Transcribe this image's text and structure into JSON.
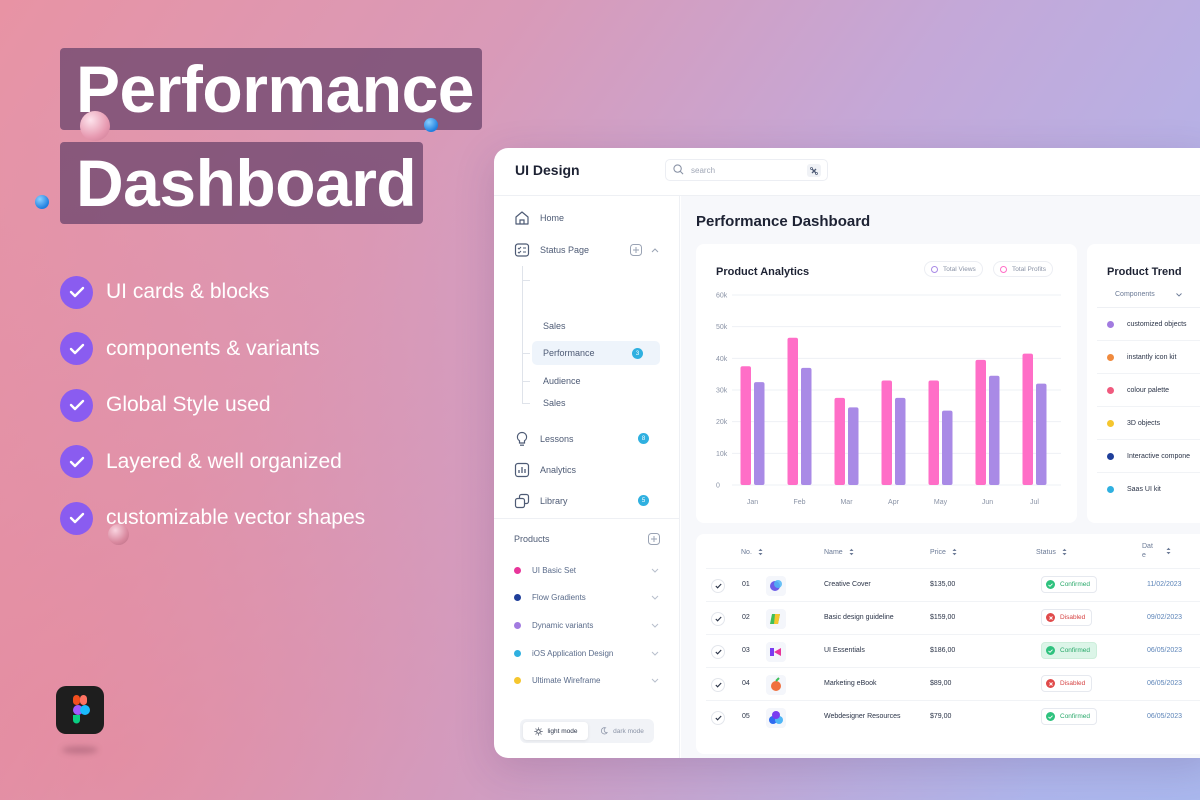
{
  "hero": {
    "title_line1": "Performance",
    "title_line2": "Dashboard",
    "features": [
      "UI cards & blocks",
      "components & variants",
      "Global Style used",
      "Layered & well organized",
      "customizable vector shapes"
    ]
  },
  "app": {
    "title": "UI Design",
    "search_placeholder": "search"
  },
  "sidebar": {
    "home": "Home",
    "status_page": "Status Page",
    "sub_items": [
      "Sales",
      "Performance",
      "Audience",
      "Sales"
    ],
    "performance_badge": "3",
    "lessons": "Lessons",
    "lessons_badge": "8",
    "analytics": "Analytics",
    "library": "Library",
    "library_badge": "5",
    "products_title": "Products",
    "products": [
      {
        "label": "UI Basic Set",
        "color": "#e8359a"
      },
      {
        "label": "Flow Gradients",
        "color": "#1f3f9a"
      },
      {
        "label": "Dynamic variants",
        "color": "#a27be0"
      },
      {
        "label": "iOS Application Design",
        "color": "#2fb0e0"
      },
      {
        "label": "Ultimate Wireframe",
        "color": "#f5c62e"
      }
    ],
    "light_mode": "light mode",
    "dark_mode": "dark mode"
  },
  "main": {
    "page_title": "Performance Dashboard"
  },
  "analytics": {
    "title": "Product Analytics",
    "legend_views": "Total Views",
    "legend_profits": "Total Profits",
    "colors": {
      "profits": "#ff6ec7",
      "views": "#a98ae6"
    }
  },
  "chart_data": {
    "type": "bar",
    "title": "Product Analytics",
    "categories": [
      "Jan",
      "Feb",
      "Mar",
      "Apr",
      "May",
      "Jun",
      "Jul"
    ],
    "series": [
      {
        "name": "Total Profits",
        "values": [
          37500,
          46500,
          27500,
          33000,
          33000,
          39500,
          41500
        ]
      },
      {
        "name": "Total Views",
        "values": [
          32500,
          37000,
          24500,
          27500,
          23500,
          34500,
          32000
        ]
      }
    ],
    "yticks": [
      "0",
      "10k",
      "20k",
      "30k",
      "40k",
      "50k",
      "60k"
    ],
    "ylim": [
      0,
      60000
    ],
    "grid": true
  },
  "trend": {
    "title": "Product Trend",
    "header": "Components",
    "items": [
      {
        "label": "customized objects",
        "color": "#a27be0"
      },
      {
        "label": "instantly icon kit",
        "color": "#f08a3e"
      },
      {
        "label": "colour palette",
        "color": "#f05a7e"
      },
      {
        "label": "3D objects",
        "color": "#f5c62e"
      },
      {
        "label": "Interactive compone",
        "color": "#1f3f9a"
      },
      {
        "label": "Saas UI kit",
        "color": "#2fb0e0"
      }
    ]
  },
  "table": {
    "headers": {
      "no": "No.",
      "name": "Name",
      "price": "Price",
      "status": "Status",
      "date": "Dat e"
    },
    "rows": [
      {
        "no": "01",
        "name": "Creative Cover",
        "price": "$135,00",
        "status": "Confirmed",
        "date": "11/02/2023"
      },
      {
        "no": "02",
        "name": "Basic design guideline",
        "price": "$159,00",
        "status": "Disabled",
        "date": "09/02/2023"
      },
      {
        "no": "03",
        "name": "UI Essentials",
        "price": "$186,00",
        "status": "Confirmed",
        "date": "06/05/2023"
      },
      {
        "no": "04",
        "name": "Marketing eBook",
        "price": "$89,00",
        "status": "Disabled",
        "date": "06/05/2023"
      },
      {
        "no": "05",
        "name": "Webdesigner Resources",
        "price": "$79,00",
        "status": "Confirmed",
        "date": "06/05/2023"
      }
    ]
  }
}
